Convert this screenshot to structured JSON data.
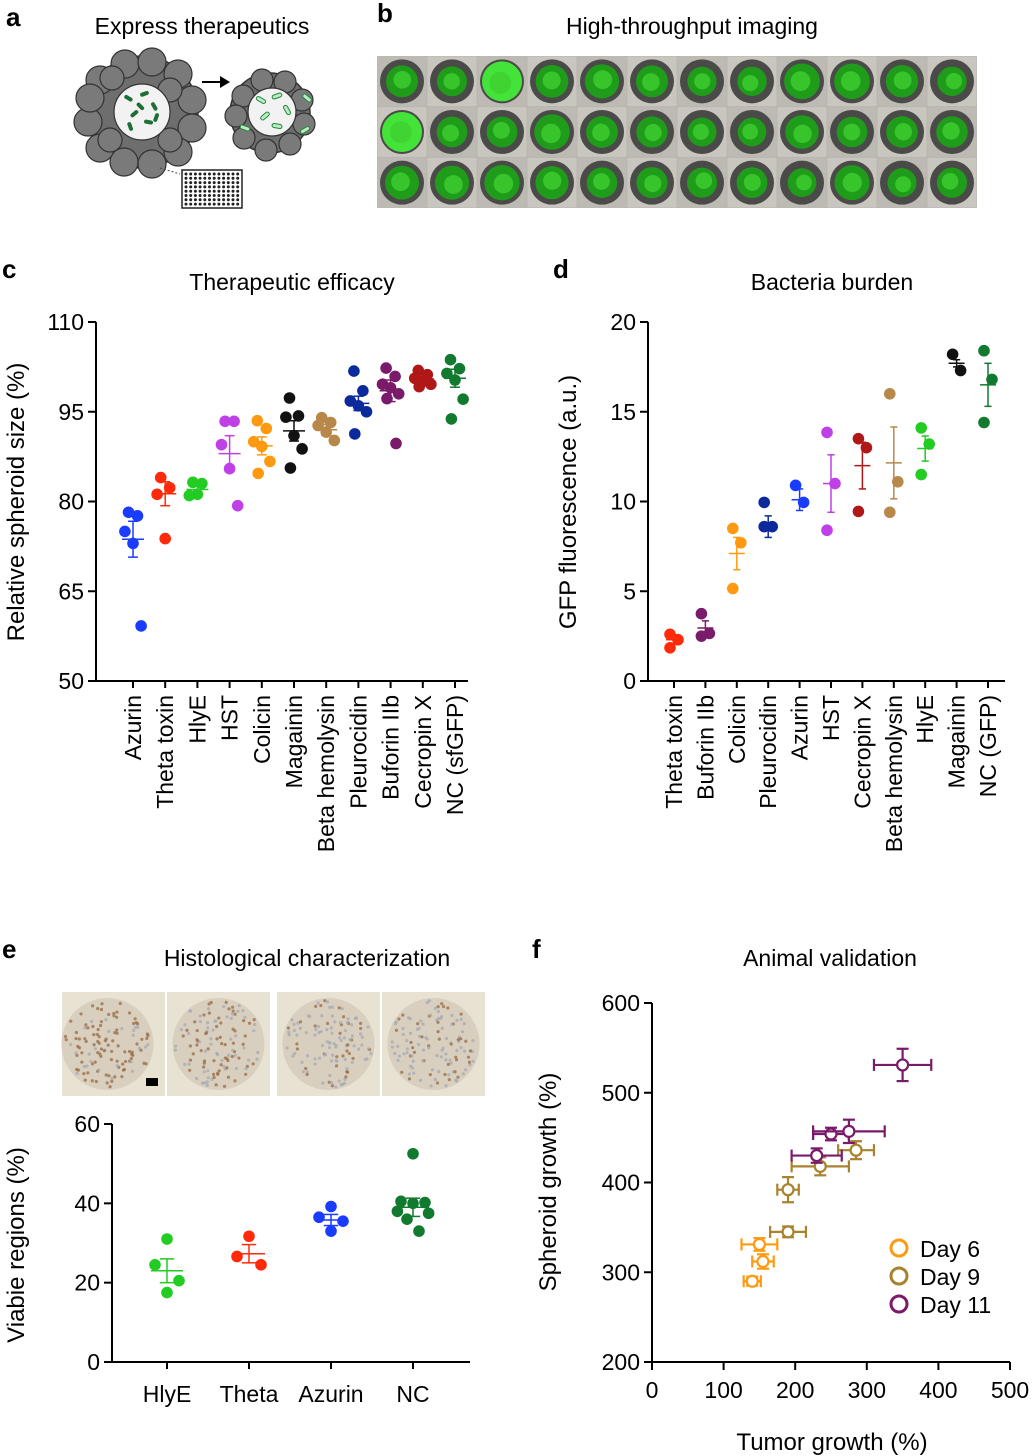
{
  "colors": {
    "azurin": "#1a3cff",
    "theta": "#ff2a0a",
    "hlye": "#22cc22",
    "hst": "#c040e8",
    "colicin": "#ff9a10",
    "magainin": "#111111",
    "beta": "#b8884a",
    "pleuro": "#0d2a9c",
    "buforin": "#7a1a6a",
    "cecropin": "#b01818",
    "nc": "#117a2e",
    "day6": "#ff9a10",
    "day9": "#a8822c",
    "day11": "#7a1a6a"
  },
  "panel_a": {
    "label": "a",
    "title": "Express therapeutics"
  },
  "panel_b": {
    "label": "b",
    "title": "High-throughput imaging",
    "grid_rows": 3,
    "grid_cols": 12
  },
  "panel_e_images": {
    "count": 4
  },
  "chart_data": [
    {
      "id": "c",
      "panel_label": "c",
      "type": "scatter",
      "title": "Therapeutic efficacy",
      "xlabel": "",
      "ylabel": "Relative spheroid size (%)",
      "ylim": [
        50,
        110
      ],
      "yticks": [
        50,
        65,
        80,
        95,
        110
      ],
      "categories": [
        "Azurin",
        "Theta toxin",
        "HlyE",
        "HST",
        "Colicin",
        "Magainin",
        "Beta hemolysin",
        "Pleurocidin",
        "Buforin IIb",
        "Cecropin X",
        "NC (sfGFP)"
      ],
      "series": [
        {
          "name": "Azurin",
          "color": "azurin",
          "mean": 73.7,
          "sem": 3.0,
          "points": [
            78.2,
            77.6,
            75.0,
            73.0,
            59.2
          ]
        },
        {
          "name": "Theta toxin",
          "color": "theta",
          "mean": 81.3,
          "sem": 2.0,
          "points": [
            84.0,
            82.3,
            81.2,
            73.8
          ]
        },
        {
          "name": "HlyE",
          "color": "hlye",
          "mean": 82.0,
          "sem": 1.0,
          "points": [
            83.2,
            83.0,
            81.0,
            81.2
          ]
        },
        {
          "name": "HST",
          "color": "hst",
          "mean": 88.0,
          "sem": 3.0,
          "points": [
            93.4,
            93.4,
            89.5,
            85.5,
            79.3
          ]
        },
        {
          "name": "Colicin",
          "color": "colicin",
          "mean": 89.3,
          "sem": 1.5,
          "points": [
            93.5,
            92.2,
            90.0,
            89.2,
            86.7,
            84.7
          ]
        },
        {
          "name": "Magainin",
          "color": "magainin",
          "mean": 91.8,
          "sem": 1.7,
          "points": [
            97.3,
            94.3,
            94.1,
            91.0,
            88.8,
            85.6
          ]
        },
        {
          "name": "Beta hemolysin",
          "color": "beta",
          "mean": 92.0,
          "sem": 0.9,
          "points": [
            94.0,
            93.2,
            92.7,
            91.6,
            90.2
          ]
        },
        {
          "name": "Pleurocidin",
          "color": "pleuro",
          "mean": 96.4,
          "sem": 1.2,
          "points": [
            101.8,
            98.5,
            96.8,
            96.0,
            95.0,
            91.3
          ]
        },
        {
          "name": "Buforin IIb",
          "color": "buforin",
          "mean": 98.5,
          "sem": 1.8,
          "points": [
            102.3,
            100.9,
            99.6,
            99.0,
            98.0,
            97.2,
            89.7
          ]
        },
        {
          "name": "Cecropin X",
          "color": "cecropin",
          "mean": 100.5,
          "sem": 0.8,
          "points": [
            101.9,
            101.2,
            100.6,
            100.1,
            99.6,
            99.2
          ]
        },
        {
          "name": "NC (sfGFP)",
          "color": "nc",
          "mean": 100.6,
          "sem": 1.5,
          "points": [
            103.7,
            102.2,
            101.4,
            100.3,
            97.1,
            93.8
          ]
        }
      ]
    },
    {
      "id": "d",
      "panel_label": "d",
      "type": "scatter",
      "title": "Bacteria burden",
      "xlabel": "",
      "ylabel": "GFP fluorescence (a.u.)",
      "ylim": [
        0,
        20
      ],
      "yticks": [
        0,
        5,
        10,
        15,
        20
      ],
      "categories": [
        "Theta toxin",
        "Buforin IIb",
        "Colicin",
        "Pleurocidin",
        "Azurin",
        "HST",
        "Cecropin X",
        "Beta hemolysin",
        "HlyE",
        "Magainin",
        "NC (GFP)"
      ],
      "series": [
        {
          "name": "Theta toxin",
          "color": "theta",
          "mean": 2.3,
          "sem": 0.25,
          "points": [
            2.6,
            2.3,
            1.85
          ]
        },
        {
          "name": "Buforin IIb",
          "color": "buforin",
          "mean": 2.95,
          "sem": 0.4,
          "points": [
            3.75,
            2.65,
            2.5
          ]
        },
        {
          "name": "Colicin",
          "color": "colicin",
          "mean": 7.1,
          "sem": 0.9,
          "points": [
            8.5,
            7.7,
            5.15
          ]
        },
        {
          "name": "Pleurocidin",
          "color": "pleuro",
          "mean": 8.6,
          "sem": 0.6,
          "points": [
            9.95,
            8.6,
            8.6
          ]
        },
        {
          "name": "Azurin",
          "color": "azurin",
          "mean": 10.1,
          "sem": 0.6,
          "points": [
            10.9,
            9.95
          ]
        },
        {
          "name": "HST",
          "color": "hst",
          "mean": 11.0,
          "sem": 1.6,
          "points": [
            13.85,
            11.0,
            8.4
          ]
        },
        {
          "name": "Cecropin X",
          "color": "cecropin",
          "mean": 12.0,
          "sem": 1.3,
          "points": [
            13.5,
            13.0,
            9.45
          ]
        },
        {
          "name": "Beta hemolysin",
          "color": "beta",
          "mean": 12.15,
          "sem": 2.0,
          "points": [
            16.0,
            11.1,
            9.4
          ]
        },
        {
          "name": "HlyE",
          "color": "hlye",
          "mean": 12.95,
          "sem": 0.7,
          "points": [
            14.1,
            13.2,
            11.5
          ]
        },
        {
          "name": "Magainin",
          "color": "magainin",
          "mean": 17.7,
          "sem": 0.2,
          "points": [
            18.2,
            17.3
          ]
        },
        {
          "name": "NC (GFP)",
          "color": "nc",
          "mean": 16.5,
          "sem": 1.2,
          "points": [
            18.4,
            16.8,
            14.4
          ]
        }
      ]
    },
    {
      "id": "e",
      "panel_label": "e",
      "type": "scatter",
      "title": "Histological characterization",
      "xlabel": "",
      "ylabel": "Viabie regions (%)",
      "ylim": [
        0,
        60
      ],
      "yticks": [
        0,
        20,
        40,
        60
      ],
      "categories": [
        "HlyE",
        "Theta",
        "Azurin",
        "NC"
      ],
      "series": [
        {
          "name": "HlyE",
          "color": "hlye",
          "mean": 23.0,
          "sem": 3.0,
          "points": [
            31.0,
            24.5,
            20.5,
            17.5
          ]
        },
        {
          "name": "Theta",
          "color": "theta",
          "mean": 27.3,
          "sem": 2.3,
          "points": [
            31.7,
            26.6,
            24.5
          ]
        },
        {
          "name": "Azurin",
          "color": "azurin",
          "mean": 35.8,
          "sem": 1.4,
          "points": [
            39.2,
            36.5,
            35.5,
            33.0
          ]
        },
        {
          "name": "NC",
          "color": "nc",
          "mean": 39.0,
          "sem": 2.3,
          "points": [
            52.5,
            40.5,
            40.2,
            40.0,
            38.0,
            37.5,
            36.0,
            33.0
          ]
        }
      ]
    },
    {
      "id": "f",
      "panel_label": "f",
      "type": "scatter",
      "title": "Animal validation",
      "xlabel": "Tumor growth (%)",
      "ylabel": "Spheroid growth (%)",
      "xlim": [
        0,
        500
      ],
      "ylim": [
        200,
        600
      ],
      "xticks": [
        0,
        100,
        200,
        300,
        400,
        500
      ],
      "yticks": [
        200,
        300,
        400,
        500,
        600
      ],
      "legend": "bottom-right",
      "series": [
        {
          "name": "Day 6",
          "color": "day6",
          "points": [
            {
              "x": 140,
              "y": 290,
              "xerr": 12,
              "yerr": 5
            },
            {
              "x": 155,
              "y": 312,
              "xerr": 15,
              "yerr": 8
            },
            {
              "x": 150,
              "y": 331,
              "xerr": 25,
              "yerr": 7
            }
          ]
        },
        {
          "name": "Day 9",
          "color": "day9",
          "points": [
            {
              "x": 190,
              "y": 345,
              "xerr": 25,
              "yerr": 6
            },
            {
              "x": 190,
              "y": 392,
              "xerr": 15,
              "yerr": 14
            },
            {
              "x": 235,
              "y": 418,
              "xerr": 40,
              "yerr": 10
            },
            {
              "x": 285,
              "y": 436,
              "xerr": 25,
              "yerr": 10
            }
          ]
        },
        {
          "name": "Day 11",
          "color": "day11",
          "points": [
            {
              "x": 230,
              "y": 430,
              "xerr": 35,
              "yerr": 8
            },
            {
              "x": 250,
              "y": 454,
              "xerr": 25,
              "yerr": 7
            },
            {
              "x": 275,
              "y": 457,
              "xerr": 50,
              "yerr": 13
            },
            {
              "x": 350,
              "y": 531,
              "xerr": 40,
              "yerr": 18
            }
          ]
        }
      ]
    }
  ]
}
